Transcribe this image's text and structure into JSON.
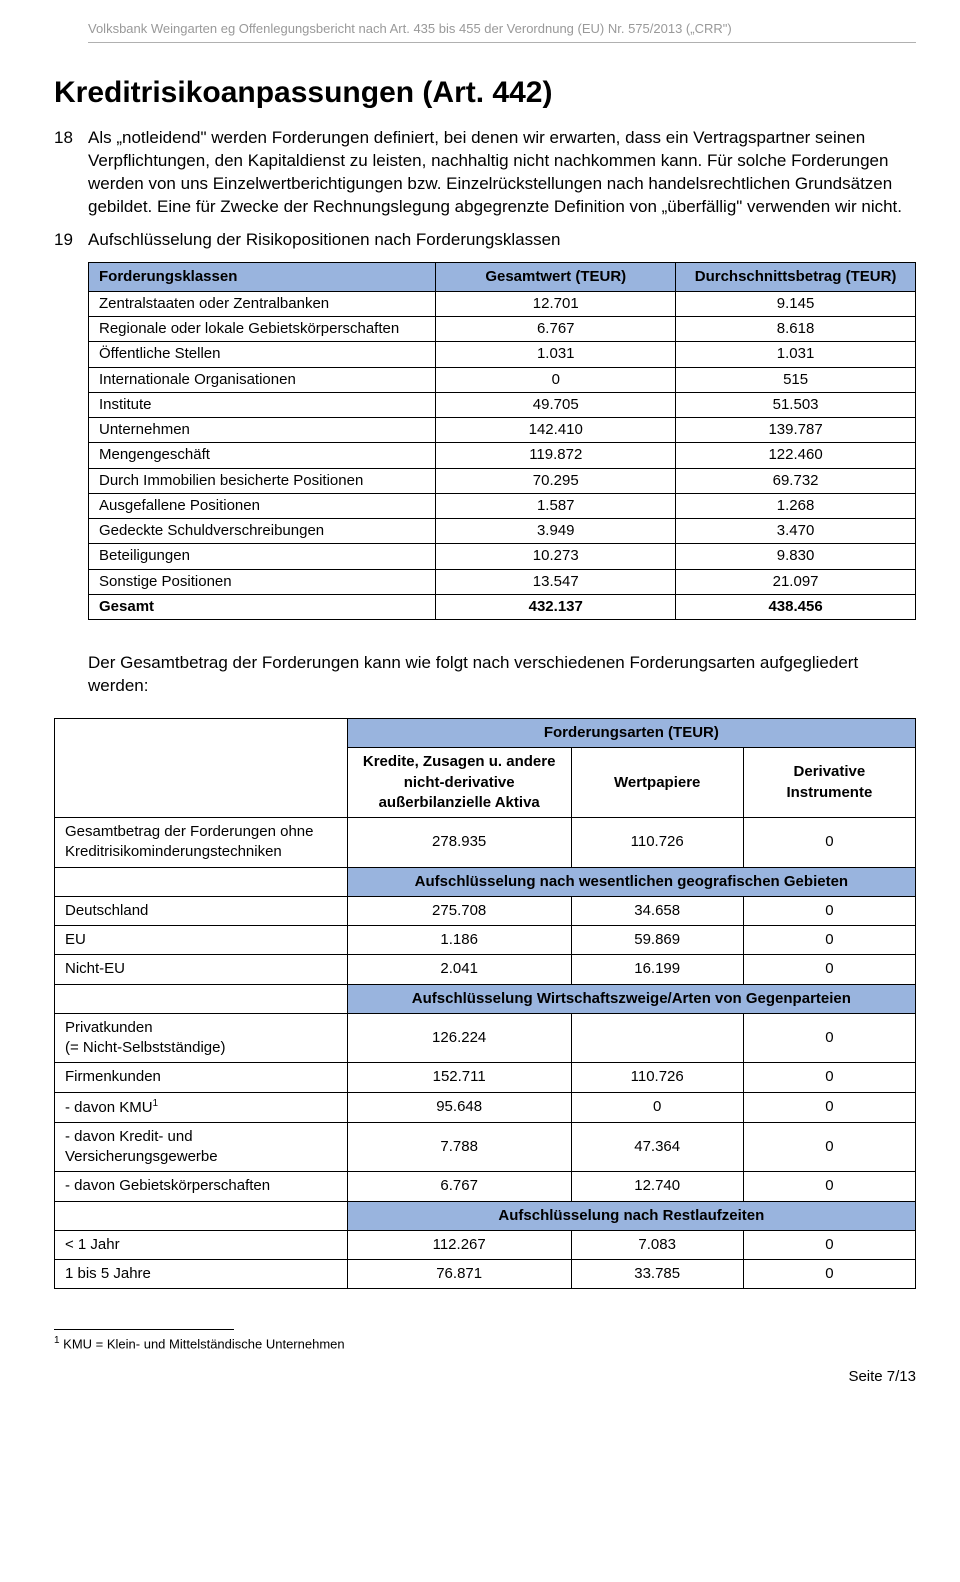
{
  "header": "Volksbank Weingarten eg Offenlegungsbericht nach Art. 435 bis 455 der Verordnung (EU) Nr. 575/2013 („CRR\")",
  "title": "Kreditrisikoanpassungen (Art. 442)",
  "para18_num": "18",
  "para18_text": "Als „notleidend\" werden Forderungen definiert, bei denen wir erwarten, dass ein Vertragspartner seinen Verpflichtungen, den Kapitaldienst zu leisten, nachhaltig nicht nachkommen kann. Für solche Forderungen werden von uns Einzelwertberichtigungen bzw. Einzelrückstellungen nach handelsrechtlichen Grundsätzen gebildet. Eine für Zwecke der Rechnungslegung abgegrenzte Definition von „überfällig\" verwenden wir nicht.",
  "para19_num": "19",
  "para19_text": "Aufschlüsselung der Risikopositionen nach Forderungsklassen",
  "table1": {
    "header_bg": "#99b4de",
    "col1": "Forderungsklassen",
    "col2": "Gesamtwert (TEUR)",
    "col3": "Durchschnittsbetrag (TEUR)",
    "rows": [
      {
        "label": "Zentralstaaten oder Zentralbanken",
        "v1": "12.701",
        "v2": "9.145"
      },
      {
        "label": "Regionale oder lokale Gebietskörperschaften",
        "v1": "6.767",
        "v2": "8.618"
      },
      {
        "label": "Öffentliche Stellen",
        "v1": "1.031",
        "v2": "1.031"
      },
      {
        "label": "Internationale Organisationen",
        "v1": "0",
        "v2": "515"
      },
      {
        "label": "Institute",
        "v1": "49.705",
        "v2": "51.503"
      },
      {
        "label": "Unternehmen",
        "v1": "142.410",
        "v2": "139.787"
      },
      {
        "label": "Mengengeschäft",
        "v1": "119.872",
        "v2": "122.460"
      },
      {
        "label": "Durch Immobilien besicherte Positionen",
        "v1": "70.295",
        "v2": "69.732"
      },
      {
        "label": "Ausgefallene Positionen",
        "v1": "1.587",
        "v2": "1.268"
      },
      {
        "label": "Gedeckte Schuldverschreibungen",
        "v1": "3.949",
        "v2": "3.470"
      },
      {
        "label": "Beteiligungen",
        "v1": "10.273",
        "v2": "9.830"
      },
      {
        "label": "Sonstige Positionen",
        "v1": "13.547",
        "v2": "21.097"
      }
    ],
    "total": {
      "label": "Gesamt",
      "v1": "432.137",
      "v2": "438.456"
    }
  },
  "mid_para": "Der Gesamtbetrag der Forderungen  kann wie folgt nach verschiedenen Forderungsarten aufgegliedert werden:",
  "table2": {
    "mainhdr": "Forderungsarten (TEUR)",
    "subcol1": "Kredite, Zusagen u. andere nicht-derivative außerbilanzielle Aktiva",
    "subcol2": "Wertpapiere",
    "subcol3": "Derivative Instrumente",
    "row_gesamt": {
      "label": "Gesamtbetrag der Forderungen ohne Kreditrisikominderungstechniken",
      "c1": "278.935",
      "c2": "110.726",
      "c3": "0"
    },
    "sect_geo": "Aufschlüsselung nach wesentlichen geografischen Gebieten",
    "geo": [
      {
        "label": "Deutschland",
        "c1": "275.708",
        "c2": "34.658",
        "c3": "0"
      },
      {
        "label": "EU",
        "c1": "1.186",
        "c2": "59.869",
        "c3": "0"
      },
      {
        "label": "Nicht-EU",
        "c1": "2.041",
        "c2": "16.199",
        "c3": "0"
      }
    ],
    "sect_wirt": "Aufschlüsselung Wirtschaftszweige/Arten von Gegenparteien",
    "wirt": [
      {
        "label_a": "Privatkunden",
        "label_b": "(= Nicht-Selbstständige)",
        "c1": "126.224",
        "c2": "",
        "c3": "0"
      },
      {
        "label": "Firmenkunden",
        "c1": "152.711",
        "c2": "110.726",
        "c3": "0"
      },
      {
        "label": "- davon KMU",
        "sup": "1",
        "c1": "95.648",
        "c2": "0",
        "c3": "0"
      },
      {
        "label": "- davon Kredit- und Versicherungsgewerbe",
        "c1": "7.788",
        "c2": "47.364",
        "c3": "0"
      },
      {
        "label": "- davon Gebietskörperschaften",
        "c1": "6.767",
        "c2": "12.740",
        "c3": "0"
      }
    ],
    "sect_rest": "Aufschlüsselung nach Restlaufzeiten",
    "rest": [
      {
        "label": "< 1 Jahr",
        "c1": "112.267",
        "c2": "7.083",
        "c3": "0"
      },
      {
        "label": "1 bis 5 Jahre",
        "c1": "76.871",
        "c2": "33.785",
        "c3": "0"
      }
    ]
  },
  "footnote_marker": "1",
  "footnote_text": " KMU = Klein- und Mittelständische Unternehmen",
  "page_footer": "Seite 7/13"
}
